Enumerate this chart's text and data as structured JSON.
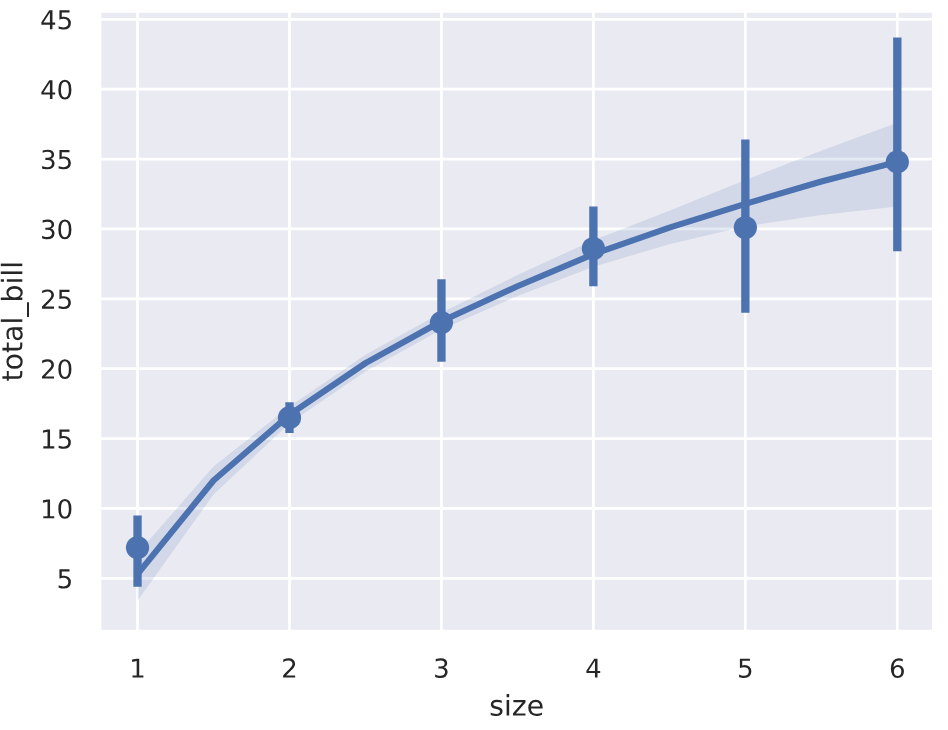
{
  "chart_data": {
    "type": "scatter",
    "xlabel": "size",
    "ylabel": "total_bill",
    "xlim": [
      0.75,
      6.24
    ],
    "ylim": [
      1.2,
      45.6
    ],
    "xticks": [
      1,
      2,
      3,
      4,
      5,
      6
    ],
    "yticks": [
      5,
      10,
      15,
      20,
      25,
      30,
      35,
      40,
      45
    ],
    "grid": true,
    "marker": "circle",
    "series": [
      {
        "color": "#4c72b0",
        "x": [
          1,
          2,
          3,
          4,
          5,
          6
        ],
        "values": [
          7.2,
          16.5,
          23.3,
          28.6,
          30.1,
          34.8
        ],
        "errors": [
          [
            4.4,
            9.5
          ],
          [
            15.4,
            17.6
          ],
          [
            20.5,
            26.4
          ],
          [
            25.9,
            31.6
          ],
          [
            24.0,
            36.4
          ],
          [
            28.4,
            43.7
          ]
        ]
      },
      {
        "type": "line",
        "color": "#4c72b0",
        "line_style": "solid",
        "marker": "none",
        "x": [
          1,
          1.5,
          2,
          2.5,
          3,
          3.5,
          4,
          4.5,
          5,
          5.5,
          6
        ],
        "values": [
          5.3,
          12.0,
          16.7,
          20.4,
          23.4,
          25.9,
          28.2,
          30.1,
          31.8,
          33.4,
          34.8
        ],
        "lower": [
          3.4,
          11.0,
          16.1,
          19.8,
          22.8,
          25.2,
          27.3,
          28.9,
          30.2,
          31.0,
          31.6
        ],
        "upper": [
          6.8,
          13.0,
          17.3,
          21.0,
          24.0,
          26.7,
          29.2,
          31.3,
          33.5,
          35.6,
          37.6
        ]
      }
    ]
  }
}
